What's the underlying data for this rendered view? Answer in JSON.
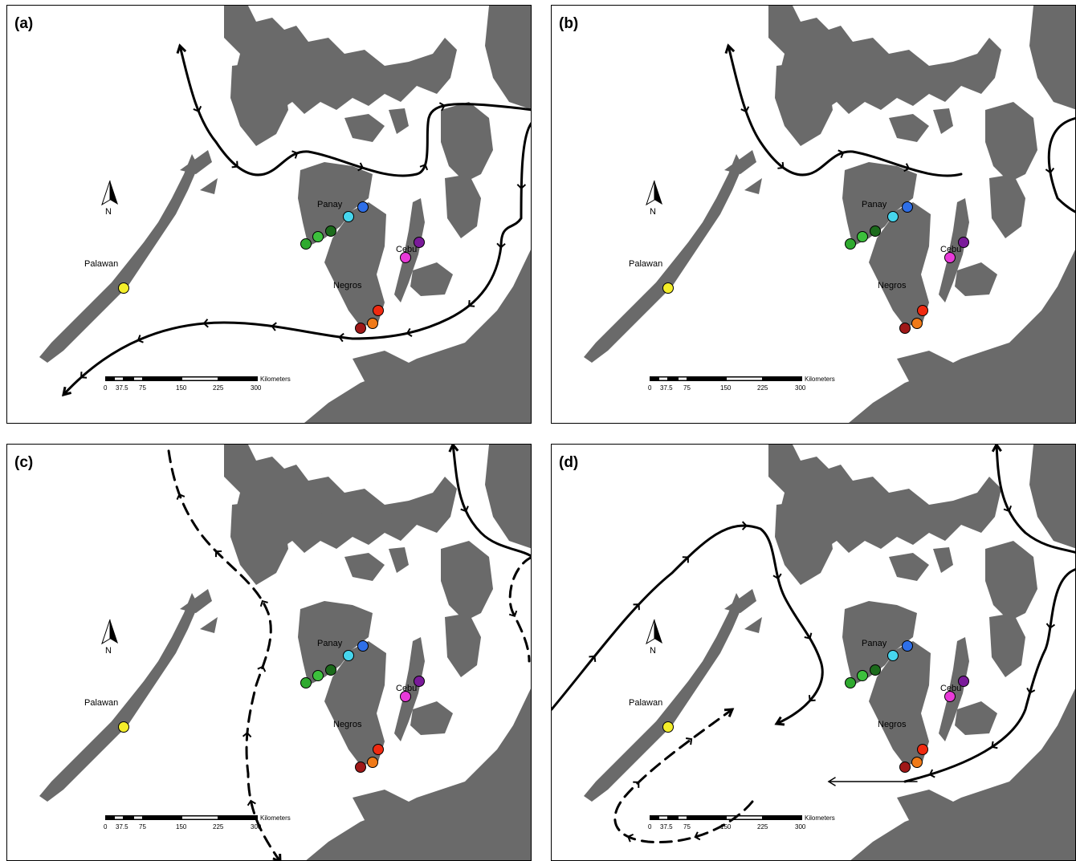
{
  "panels": [
    {
      "label": "(a)"
    },
    {
      "label": "(b)"
    },
    {
      "label": "(c)"
    },
    {
      "label": "(d)"
    }
  ],
  "places": {
    "palawan": "Palawan",
    "panay": "Panay",
    "negros": "Negros",
    "cebu": "Cebu"
  },
  "north_arrow": "N",
  "scale_bar": {
    "unit": "Kilometers",
    "ticks": [
      "0",
      "37.5",
      "75",
      "150",
      "225",
      "300"
    ]
  },
  "site_colors": {
    "palawan": "#f4ee2a",
    "panay_blue": "#2e6fe8",
    "panay_cyan": "#46d6ee",
    "panay_darkgreen": "#1c6b1c",
    "panay_green1": "#2faa2f",
    "panay_green2": "#3cc03c",
    "cebu_purple": "#7a1a9a",
    "cebu_magenta": "#e83ad8",
    "negros_red": "#f02a10",
    "negros_orange": "#f07a18",
    "negros_darkred": "#a01818"
  },
  "land_color": "#6a6a6a"
}
